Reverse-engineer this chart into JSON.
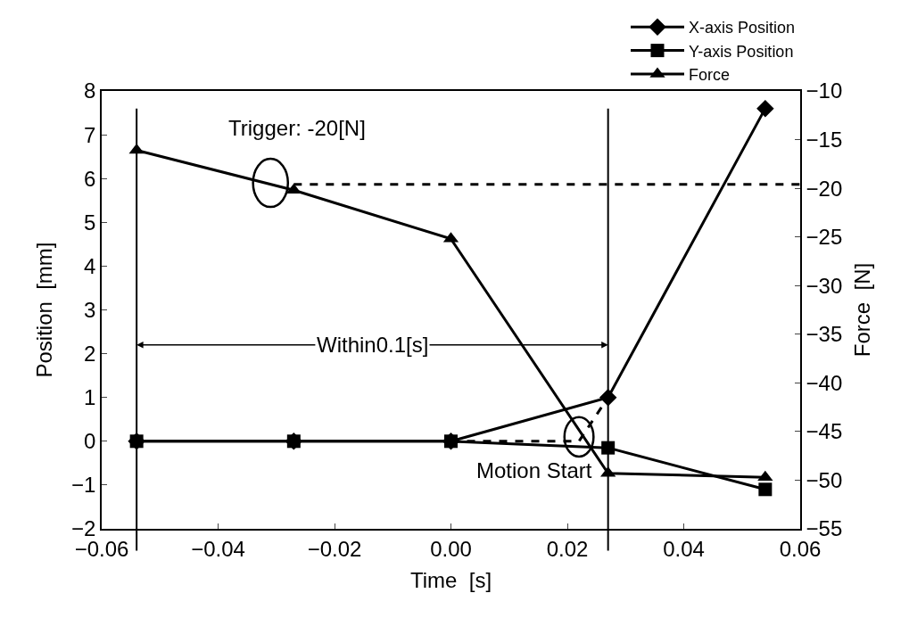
{
  "chart_data": {
    "type": "line",
    "xlabel": "Time  [s]",
    "ylabel": "Position  [mm]",
    "y2label": "Force  [N]",
    "x": [
      -0.054,
      -0.027,
      0.0,
      0.027,
      0.054
    ],
    "series": [
      {
        "name": "X-axis Position",
        "color": "#000000",
        "marker": "diamond",
        "values": [
          0,
          0,
          0,
          1.0,
          7.6
        ]
      },
      {
        "name": "Y-axis Position",
        "color": "#000000",
        "marker": "square",
        "values": [
          0,
          0,
          0,
          -0.15,
          -1.1
        ]
      },
      {
        "name": "Force",
        "color": "#000000",
        "marker": "triangle",
        "axis": "y2",
        "values": [
          -16.1,
          -20.2,
          -25.2,
          -49.3,
          -49.7
        ]
      },
      {
        "color": "#000000",
        "marker": "none",
        "line_style": "dashed",
        "axis": "y2",
        "x": [
          -0.027,
          0.06
        ],
        "values": [
          -19.6,
          -19.6
        ]
      },
      {
        "color": "#000000",
        "marker": "none",
        "line_style": "dashed",
        "x": [
          0.0,
          0.022,
          0.027
        ],
        "values": [
          0,
          0,
          1.0
        ]
      }
    ],
    "ref_lines": [
      {
        "axis": "x",
        "value": -0.054,
        "color": "#000000"
      },
      {
        "axis": "x",
        "value": 0.027,
        "color": "#000000"
      }
    ],
    "annotations": [
      {
        "text": "Trigger: -20[N]",
        "x": -0.031,
        "y": 5.9
      },
      {
        "text": "Motion Start",
        "x": 0.022,
        "y": 0.1
      },
      {
        "text": "Within0.1[s]",
        "x": -0.054,
        "y": 2.2
      }
    ],
    "xlim": [
      -0.06,
      0.06
    ],
    "xticks": [
      {
        "value": -0.06,
        "label": "−0.06"
      },
      {
        "value": -0.04,
        "label": "−0.04"
      },
      {
        "value": -0.02,
        "label": "−0.02"
      },
      {
        "value": 0,
        "label": "0.00"
      },
      {
        "value": 0.02,
        "label": "0.02"
      },
      {
        "value": 0.04,
        "label": "0.04"
      },
      {
        "value": 0.06,
        "label": "0.06"
      }
    ],
    "ylim": [
      -2,
      8
    ],
    "yticks": [
      {
        "value": -2,
        "label": "−2"
      },
      {
        "value": -1,
        "label": "−1"
      },
      0,
      1,
      2,
      3,
      4,
      5,
      6,
      7,
      8
    ],
    "y2lim": [
      -55,
      -10
    ],
    "y2ticks": [
      {
        "value": -55,
        "label": "−55"
      },
      {
        "value": -50,
        "label": "−50"
      },
      {
        "value": -45,
        "label": "−45"
      },
      {
        "value": -40,
        "label": "−40"
      },
      {
        "value": -35,
        "label": "−35"
      },
      {
        "value": -30,
        "label": "−30"
      },
      {
        "value": -25,
        "label": "−25"
      },
      {
        "value": -20,
        "label": "−20"
      },
      {
        "value": -15,
        "label": "−15"
      },
      {
        "value": -10,
        "label": "−10"
      }
    ],
    "grid": false,
    "legend": "top right"
  }
}
